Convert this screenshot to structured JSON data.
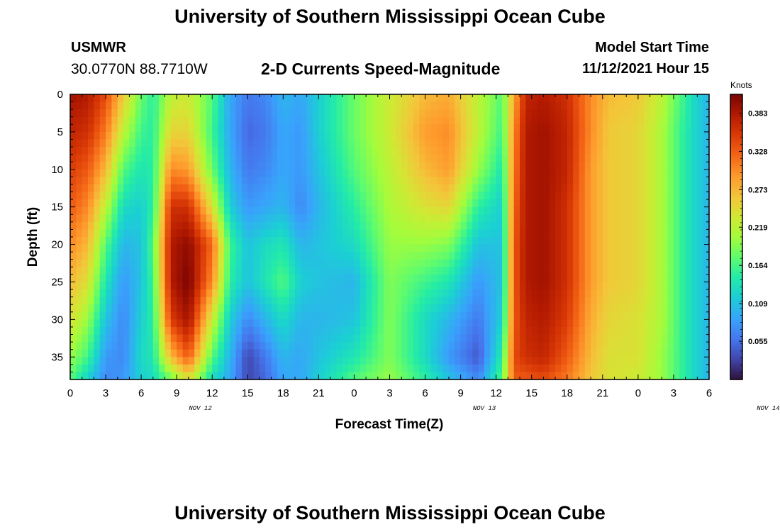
{
  "header": {
    "title": "University of Southern Mississippi Ocean Cube",
    "station": "USMWR",
    "coordinates": "30.0770N  88.7710W",
    "subtitle": "2-D Currents Speed-Magnitude",
    "model_start_label": "Model Start Time",
    "model_start_value": "11/12/2021 Hour 15",
    "footer_title": "University of Southern Mississippi Ocean Cube"
  },
  "chart_data": {
    "type": "heatmap",
    "xlabel": "Forecast Time(Z)",
    "ylabel": "Depth (ft)",
    "x_tick_labels": [
      "0",
      "3",
      "6",
      "9",
      "12",
      "15",
      "18",
      "21",
      "0",
      "3",
      "6",
      "9",
      "12",
      "15",
      "18",
      "21",
      "0",
      "3",
      "6"
    ],
    "date_labels": [
      {
        "label": "NOV 12",
        "hour_index": 11
      },
      {
        "label": "NOV 13",
        "hour_index": 35
      },
      {
        "label": "NOV 14",
        "hour_index": 59
      }
    ],
    "x_hours_range": [
      0,
      54
    ],
    "y_ticks": [
      0,
      5,
      10,
      15,
      20,
      25,
      30,
      35
    ],
    "y_range": [
      0,
      38
    ],
    "y_inverted": true,
    "colorbar": {
      "units": "Knots",
      "tick_values": [
        0.383,
        0.328,
        0.273,
        0.219,
        0.164,
        0.109,
        0.055
      ],
      "tick_labels": [
        "0.383",
        "0.328",
        "0.273",
        "0.219",
        "0.164",
        "0.109",
        "0.055"
      ],
      "range": [
        0.0,
        0.41
      ],
      "colormap": "turbo"
    },
    "speed_profile_knots": {
      "depths_ft": [
        0,
        5,
        10,
        15,
        20,
        25,
        30,
        35,
        38
      ],
      "times_hours": [
        0,
        1.5,
        3,
        4.5,
        6,
        7,
        8.5,
        10,
        12,
        13.5,
        15,
        16.5,
        18,
        19.5,
        21,
        24,
        27,
        30,
        32,
        34.5,
        36.5,
        37.5,
        38.5,
        40,
        42,
        44,
        45.5,
        48,
        50,
        51.5,
        53,
        54
      ],
      "values": [
        [
          0.39,
          0.37,
          0.35,
          0.33,
          0.3,
          0.27,
          0.24,
          0.2,
          0.17
        ],
        [
          0.38,
          0.36,
          0.33,
          0.3,
          0.27,
          0.24,
          0.2,
          0.16,
          0.12
        ],
        [
          0.34,
          0.31,
          0.27,
          0.22,
          0.17,
          0.14,
          0.11,
          0.08,
          0.07
        ],
        [
          0.26,
          0.22,
          0.17,
          0.13,
          0.1,
          0.08,
          0.07,
          0.07,
          0.08
        ],
        [
          0.18,
          0.16,
          0.14,
          0.12,
          0.11,
          0.11,
          0.12,
          0.13,
          0.12
        ],
        [
          0.15,
          0.15,
          0.15,
          0.15,
          0.17,
          0.16,
          0.15,
          0.14,
          0.13
        ],
        [
          0.22,
          0.25,
          0.3,
          0.36,
          0.38,
          0.38,
          0.35,
          0.27,
          0.18
        ],
        [
          0.23,
          0.25,
          0.29,
          0.36,
          0.4,
          0.41,
          0.39,
          0.33,
          0.24
        ],
        [
          0.17,
          0.16,
          0.18,
          0.24,
          0.32,
          0.3,
          0.23,
          0.17,
          0.13
        ],
        [
          0.09,
          0.09,
          0.1,
          0.12,
          0.16,
          0.15,
          0.12,
          0.1,
          0.09
        ],
        [
          0.06,
          0.05,
          0.06,
          0.08,
          0.11,
          0.11,
          0.07,
          0.03,
          0.03
        ],
        [
          0.07,
          0.06,
          0.07,
          0.09,
          0.13,
          0.14,
          0.1,
          0.06,
          0.05
        ],
        [
          0.1,
          0.09,
          0.09,
          0.1,
          0.14,
          0.17,
          0.13,
          0.1,
          0.09
        ],
        [
          0.09,
          0.08,
          0.08,
          0.07,
          0.1,
          0.12,
          0.1,
          0.09,
          0.09
        ],
        [
          0.12,
          0.12,
          0.11,
          0.1,
          0.11,
          0.11,
          0.1,
          0.11,
          0.12
        ],
        [
          0.18,
          0.18,
          0.17,
          0.15,
          0.13,
          0.1,
          0.11,
          0.14,
          0.17
        ],
        [
          0.23,
          0.23,
          0.22,
          0.21,
          0.2,
          0.19,
          0.19,
          0.19,
          0.2
        ],
        [
          0.27,
          0.29,
          0.27,
          0.24,
          0.2,
          0.16,
          0.13,
          0.13,
          0.15
        ],
        [
          0.28,
          0.3,
          0.29,
          0.25,
          0.19,
          0.14,
          0.1,
          0.08,
          0.11
        ],
        [
          0.22,
          0.22,
          0.2,
          0.15,
          0.11,
          0.08,
          0.06,
          0.04,
          0.07
        ],
        [
          0.17,
          0.16,
          0.14,
          0.12,
          0.11,
          0.11,
          0.12,
          0.15,
          0.17
        ],
        [
          0.28,
          0.3,
          0.31,
          0.32,
          0.33,
          0.33,
          0.33,
          0.34,
          0.33
        ],
        [
          0.37,
          0.38,
          0.38,
          0.38,
          0.38,
          0.38,
          0.37,
          0.36,
          0.33
        ],
        [
          0.38,
          0.39,
          0.39,
          0.39,
          0.39,
          0.39,
          0.38,
          0.37,
          0.34
        ],
        [
          0.36,
          0.37,
          0.37,
          0.36,
          0.36,
          0.36,
          0.35,
          0.33,
          0.31
        ],
        [
          0.3,
          0.3,
          0.29,
          0.29,
          0.29,
          0.29,
          0.28,
          0.27,
          0.26
        ],
        [
          0.27,
          0.26,
          0.26,
          0.26,
          0.26,
          0.26,
          0.25,
          0.24,
          0.24
        ],
        [
          0.26,
          0.25,
          0.25,
          0.25,
          0.25,
          0.25,
          0.24,
          0.24,
          0.23
        ],
        [
          0.22,
          0.21,
          0.21,
          0.21,
          0.21,
          0.21,
          0.21,
          0.2,
          0.2
        ],
        [
          0.17,
          0.16,
          0.16,
          0.16,
          0.16,
          0.16,
          0.16,
          0.16,
          0.16
        ],
        [
          0.12,
          0.12,
          0.12,
          0.12,
          0.12,
          0.12,
          0.12,
          0.12,
          0.12
        ],
        [
          0.1,
          0.1,
          0.1,
          0.1,
          0.1,
          0.1,
          0.1,
          0.1,
          0.1
        ]
      ]
    }
  }
}
